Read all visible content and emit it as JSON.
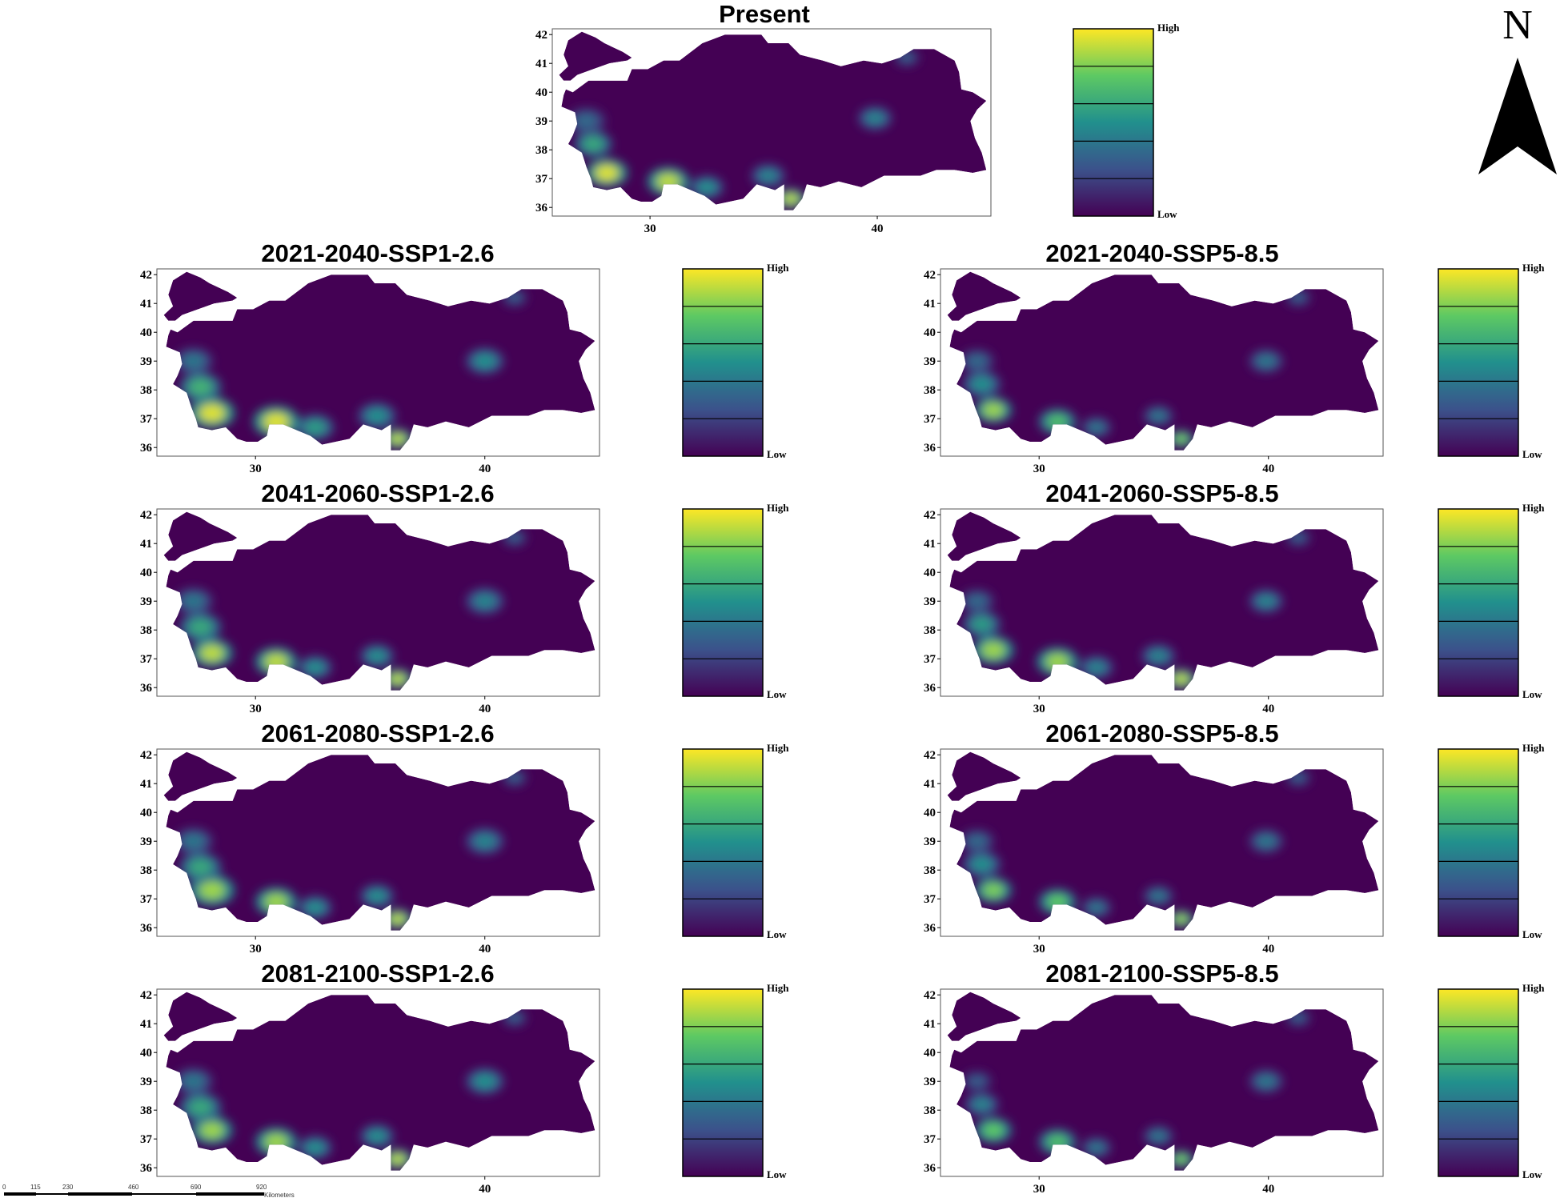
{
  "figure": {
    "north_arrow": {
      "letter": "N"
    },
    "scale_bar": {
      "ticks": [
        "0",
        "115",
        "230",
        "460",
        "690",
        "920"
      ],
      "unit": "Kilometers"
    },
    "legend": {
      "high_label": "High",
      "low_label": "Low"
    },
    "colormap": [
      "#440154",
      "#3b528b",
      "#21908d",
      "#5dc963",
      "#fde725"
    ],
    "panels": [
      {
        "id": "present",
        "title": "Present",
        "lat_ticks": [
          "42",
          "41",
          "40",
          "39",
          "38",
          "37",
          "36"
        ],
        "lon_ticks": [
          "30",
          "40"
        ],
        "hotspots": [
          {
            "lon": 28.1,
            "lat": 37.2,
            "value": 0.95,
            "size": 1.0
          },
          {
            "lon": 27.5,
            "lat": 38.2,
            "value": 0.6,
            "size": 0.9
          },
          {
            "lon": 27.2,
            "lat": 39.0,
            "value": 0.35,
            "size": 0.9
          },
          {
            "lon": 30.8,
            "lat": 36.9,
            "value": 0.9,
            "size": 1.0
          },
          {
            "lon": 32.5,
            "lat": 36.7,
            "value": 0.5,
            "size": 0.8
          },
          {
            "lon": 35.2,
            "lat": 37.1,
            "value": 0.45,
            "size": 0.8
          },
          {
            "lon": 36.2,
            "lat": 36.3,
            "value": 0.9,
            "size": 0.7
          },
          {
            "lon": 39.9,
            "lat": 39.1,
            "value": 0.45,
            "size": 0.8
          },
          {
            "lon": 41.3,
            "lat": 41.2,
            "value": 0.3,
            "size": 0.6
          }
        ]
      },
      {
        "id": "ssp126-2021",
        "title": "2021-2040-SSP1-2.6",
        "lat_ticks": [
          "42",
          "41",
          "40",
          "39",
          "38",
          "37",
          "36"
        ],
        "lon_ticks": [
          "30",
          "40"
        ],
        "hotspots": [
          {
            "lon": 28.1,
            "lat": 37.2,
            "value": 0.95,
            "size": 1.1
          },
          {
            "lon": 27.6,
            "lat": 38.1,
            "value": 0.65,
            "size": 1.0
          },
          {
            "lon": 27.3,
            "lat": 39.0,
            "value": 0.4,
            "size": 0.9
          },
          {
            "lon": 30.9,
            "lat": 36.9,
            "value": 0.95,
            "size": 1.1
          },
          {
            "lon": 32.6,
            "lat": 36.7,
            "value": 0.55,
            "size": 0.9
          },
          {
            "lon": 35.3,
            "lat": 37.1,
            "value": 0.5,
            "size": 0.9
          },
          {
            "lon": 36.2,
            "lat": 36.3,
            "value": 0.9,
            "size": 0.7
          },
          {
            "lon": 40.0,
            "lat": 39.0,
            "value": 0.5,
            "size": 0.9
          },
          {
            "lon": 41.3,
            "lat": 41.2,
            "value": 0.3,
            "size": 0.6
          }
        ]
      },
      {
        "id": "ssp585-2021",
        "title": "2021-2040-SSP5-8.5",
        "lat_ticks": [
          "42",
          "41",
          "40",
          "39",
          "38",
          "37",
          "36"
        ],
        "lon_ticks": [
          "30",
          "40"
        ],
        "hotspots": [
          {
            "lon": 28.0,
            "lat": 37.3,
            "value": 0.85,
            "size": 0.9
          },
          {
            "lon": 27.5,
            "lat": 38.2,
            "value": 0.5,
            "size": 0.9
          },
          {
            "lon": 27.3,
            "lat": 39.0,
            "value": 0.35,
            "size": 0.8
          },
          {
            "lon": 30.8,
            "lat": 36.9,
            "value": 0.7,
            "size": 0.9
          },
          {
            "lon": 32.5,
            "lat": 36.7,
            "value": 0.4,
            "size": 0.7
          },
          {
            "lon": 35.2,
            "lat": 37.1,
            "value": 0.4,
            "size": 0.7
          },
          {
            "lon": 36.2,
            "lat": 36.3,
            "value": 0.8,
            "size": 0.6
          },
          {
            "lon": 39.9,
            "lat": 39.0,
            "value": 0.4,
            "size": 0.8
          },
          {
            "lon": 41.3,
            "lat": 41.2,
            "value": 0.3,
            "size": 0.6
          }
        ]
      },
      {
        "id": "ssp126-2041",
        "title": "2041-2060-SSP1-2.6",
        "lat_ticks": [
          "42",
          "41",
          "40",
          "39",
          "38",
          "37",
          "36"
        ],
        "lon_ticks": [
          "30",
          "40"
        ],
        "hotspots": [
          {
            "lon": 28.1,
            "lat": 37.2,
            "value": 0.9,
            "size": 1.0
          },
          {
            "lon": 27.6,
            "lat": 38.1,
            "value": 0.6,
            "size": 1.0
          },
          {
            "lon": 27.3,
            "lat": 39.0,
            "value": 0.4,
            "size": 0.9
          },
          {
            "lon": 30.9,
            "lat": 36.9,
            "value": 0.9,
            "size": 1.0
          },
          {
            "lon": 32.6,
            "lat": 36.7,
            "value": 0.5,
            "size": 0.8
          },
          {
            "lon": 35.3,
            "lat": 37.1,
            "value": 0.5,
            "size": 0.8
          },
          {
            "lon": 36.2,
            "lat": 36.3,
            "value": 0.9,
            "size": 0.7
          },
          {
            "lon": 40.0,
            "lat": 39.0,
            "value": 0.45,
            "size": 0.9
          },
          {
            "lon": 41.3,
            "lat": 41.2,
            "value": 0.3,
            "size": 0.6
          }
        ]
      },
      {
        "id": "ssp585-2041",
        "title": "2041-2060-SSP5-8.5",
        "lat_ticks": [
          "42",
          "41",
          "40",
          "39",
          "38",
          "37",
          "36"
        ],
        "lon_ticks": [
          "30",
          "40"
        ],
        "hotspots": [
          {
            "lon": 28.0,
            "lat": 37.3,
            "value": 0.85,
            "size": 1.0
          },
          {
            "lon": 27.5,
            "lat": 38.2,
            "value": 0.55,
            "size": 0.9
          },
          {
            "lon": 27.3,
            "lat": 39.0,
            "value": 0.35,
            "size": 0.8
          },
          {
            "lon": 30.8,
            "lat": 36.9,
            "value": 0.85,
            "size": 1.0
          },
          {
            "lon": 32.5,
            "lat": 36.7,
            "value": 0.45,
            "size": 0.8
          },
          {
            "lon": 35.2,
            "lat": 37.1,
            "value": 0.45,
            "size": 0.8
          },
          {
            "lon": 36.2,
            "lat": 36.3,
            "value": 0.9,
            "size": 0.7
          },
          {
            "lon": 39.9,
            "lat": 39.0,
            "value": 0.45,
            "size": 0.8
          },
          {
            "lon": 41.3,
            "lat": 41.2,
            "value": 0.3,
            "size": 0.6
          }
        ]
      },
      {
        "id": "ssp126-2061",
        "title": "2061-2080-SSP1-2.6",
        "lat_ticks": [
          "42",
          "41",
          "40",
          "39",
          "38",
          "37",
          "36"
        ],
        "lon_ticks": [
          "30",
          "40"
        ],
        "hotspots": [
          {
            "lon": 28.1,
            "lat": 37.3,
            "value": 0.85,
            "size": 1.1
          },
          {
            "lon": 27.6,
            "lat": 38.1,
            "value": 0.6,
            "size": 1.0
          },
          {
            "lon": 27.3,
            "lat": 39.0,
            "value": 0.4,
            "size": 0.9
          },
          {
            "lon": 30.9,
            "lat": 36.9,
            "value": 0.85,
            "size": 1.0
          },
          {
            "lon": 32.6,
            "lat": 36.7,
            "value": 0.5,
            "size": 0.8
          },
          {
            "lon": 35.3,
            "lat": 37.1,
            "value": 0.5,
            "size": 0.8
          },
          {
            "lon": 36.2,
            "lat": 36.3,
            "value": 0.9,
            "size": 0.7
          },
          {
            "lon": 40.0,
            "lat": 39.0,
            "value": 0.45,
            "size": 0.9
          },
          {
            "lon": 41.3,
            "lat": 41.2,
            "value": 0.3,
            "size": 0.6
          }
        ]
      },
      {
        "id": "ssp585-2061",
        "title": "2061-2080-SSP5-8.5",
        "lat_ticks": [
          "42",
          "41",
          "40",
          "39",
          "38",
          "37",
          "36"
        ],
        "lon_ticks": [
          "30",
          "40"
        ],
        "hotspots": [
          {
            "lon": 28.0,
            "lat": 37.3,
            "value": 0.8,
            "size": 0.9
          },
          {
            "lon": 27.5,
            "lat": 38.2,
            "value": 0.5,
            "size": 0.9
          },
          {
            "lon": 27.3,
            "lat": 39.0,
            "value": 0.35,
            "size": 0.8
          },
          {
            "lon": 30.8,
            "lat": 36.9,
            "value": 0.75,
            "size": 0.9
          },
          {
            "lon": 32.5,
            "lat": 36.7,
            "value": 0.4,
            "size": 0.7
          },
          {
            "lon": 35.2,
            "lat": 37.1,
            "value": 0.4,
            "size": 0.7
          },
          {
            "lon": 36.2,
            "lat": 36.3,
            "value": 0.85,
            "size": 0.6
          },
          {
            "lon": 39.9,
            "lat": 39.0,
            "value": 0.4,
            "size": 0.8
          },
          {
            "lon": 41.3,
            "lat": 41.2,
            "value": 0.3,
            "size": 0.6
          }
        ]
      },
      {
        "id": "ssp126-2081",
        "title": "2081-2100-SSP1-2.6",
        "lat_ticks": [
          "42",
          "41",
          "40",
          "39",
          "38",
          "37",
          "36"
        ],
        "lon_ticks": [
          "40"
        ],
        "hotspots": [
          {
            "lon": 28.1,
            "lat": 37.3,
            "value": 0.85,
            "size": 1.0
          },
          {
            "lon": 27.6,
            "lat": 38.1,
            "value": 0.6,
            "size": 1.0
          },
          {
            "lon": 27.3,
            "lat": 39.0,
            "value": 0.4,
            "size": 0.9
          },
          {
            "lon": 30.9,
            "lat": 36.9,
            "value": 0.85,
            "size": 1.0
          },
          {
            "lon": 32.6,
            "lat": 36.7,
            "value": 0.5,
            "size": 0.8
          },
          {
            "lon": 35.3,
            "lat": 37.1,
            "value": 0.5,
            "size": 0.8
          },
          {
            "lon": 36.2,
            "lat": 36.3,
            "value": 0.9,
            "size": 0.7
          },
          {
            "lon": 40.0,
            "lat": 39.0,
            "value": 0.5,
            "size": 0.9
          },
          {
            "lon": 41.3,
            "lat": 41.2,
            "value": 0.3,
            "size": 0.6
          }
        ]
      },
      {
        "id": "ssp585-2081",
        "title": "2081-2100-SSP5-8.5",
        "lat_ticks": [
          "42",
          "41",
          "40",
          "39",
          "38",
          "37",
          "36"
        ],
        "lon_ticks": [
          "30",
          "40"
        ],
        "hotspots": [
          {
            "lon": 28.0,
            "lat": 37.3,
            "value": 0.75,
            "size": 0.9
          },
          {
            "lon": 27.5,
            "lat": 38.2,
            "value": 0.45,
            "size": 0.8
          },
          {
            "lon": 27.3,
            "lat": 39.0,
            "value": 0.3,
            "size": 0.7
          },
          {
            "lon": 30.8,
            "lat": 36.9,
            "value": 0.7,
            "size": 0.9
          },
          {
            "lon": 32.5,
            "lat": 36.7,
            "value": 0.4,
            "size": 0.7
          },
          {
            "lon": 35.2,
            "lat": 37.1,
            "value": 0.4,
            "size": 0.7
          },
          {
            "lon": 36.2,
            "lat": 36.3,
            "value": 0.8,
            "size": 0.6
          },
          {
            "lon": 39.9,
            "lat": 39.0,
            "value": 0.4,
            "size": 0.8
          },
          {
            "lon": 41.3,
            "lat": 41.2,
            "value": 0.3,
            "size": 0.6
          }
        ]
      }
    ]
  }
}
